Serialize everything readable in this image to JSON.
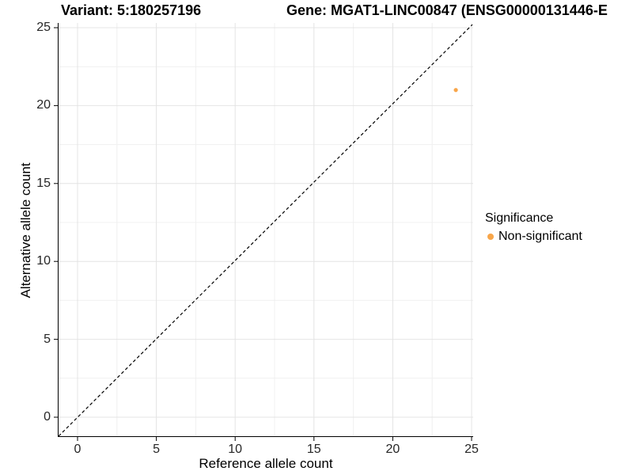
{
  "title": {
    "variant": "Variant: 5:180257196",
    "gene": "Gene: MGAT1-LINC00847 (ENSG00000131446-E"
  },
  "axes": {
    "x_label": "Reference allele count",
    "y_label": "Alternative allele count"
  },
  "legend": {
    "title": "Significance",
    "items": [
      {
        "label": "Non-significant",
        "color": "#F8A64A"
      }
    ]
  },
  "chart_data": {
    "type": "scatter",
    "title": "Variant: 5:180257196    Gene: MGAT1-LINC00847 (ENSG00000131446-E",
    "xlabel": "Reference allele count",
    "ylabel": "Alternative allele count",
    "xlim": [
      -1.25,
      25.1
    ],
    "ylim": [
      -1.25,
      25.3
    ],
    "x_ticks": [
      0,
      5,
      10,
      15,
      20,
      25
    ],
    "y_ticks": [
      0,
      5,
      10,
      15,
      20,
      25
    ],
    "x_minor_ticks": [
      2.5,
      7.5,
      12.5,
      17.5,
      22.5
    ],
    "y_minor_ticks": [
      2.5,
      7.5,
      12.5,
      17.5,
      22.5
    ],
    "grid": true,
    "legend_position": "right",
    "legend_title": "Significance",
    "reference_line": {
      "type": "identity",
      "style": "dashed",
      "color": "#000000"
    },
    "series": [
      {
        "name": "Non-significant",
        "color": "#F8A64A",
        "points": [
          {
            "x": 24,
            "y": 21
          }
        ]
      }
    ],
    "colors": {
      "point_orange": "#F8A64A",
      "grid_major": "#E4E4E4",
      "grid_minor": "#F0F0F0",
      "axis_line": "#000000",
      "background": "#FFFFFF"
    }
  }
}
